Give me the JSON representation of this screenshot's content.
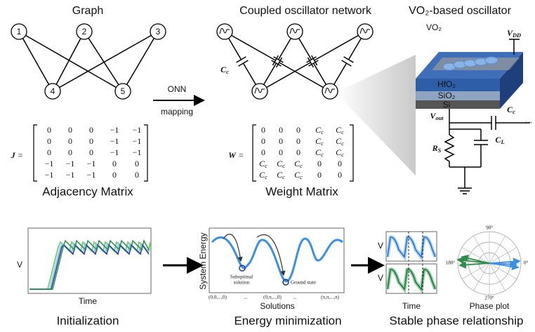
{
  "graph": {
    "title": "Graph",
    "nodes": [
      "1",
      "2",
      "3",
      "4",
      "5"
    ]
  },
  "mapping": {
    "label": "ONN",
    "sublabel": "mapping"
  },
  "adjacency": {
    "symbol": "J",
    "equals": "=",
    "rows": [
      [
        "0",
        "0",
        "0",
        "−1",
        "−1"
      ],
      [
        "0",
        "0",
        "0",
        "−1",
        "−1"
      ],
      [
        "0",
        "0",
        "0",
        "−1",
        "−1"
      ],
      [
        "−1",
        "−1",
        "−1",
        "0",
        "0"
      ],
      [
        "−1",
        "−1",
        "−1",
        "0",
        "0"
      ]
    ],
    "caption": "Adjacency Matrix"
  },
  "network": {
    "title": "Coupled oscillator network",
    "coupling_label": {
      "main": "C",
      "sub": "c"
    }
  },
  "weight": {
    "symbol": "W",
    "equals": "=",
    "rows": [
      [
        "0",
        "0",
        "0",
        {
          "main": "C",
          "sub": "c"
        },
        {
          "main": "C",
          "sub": "c"
        }
      ],
      [
        "0",
        "0",
        "0",
        {
          "main": "C",
          "sub": "c"
        },
        {
          "main": "C",
          "sub": "c"
        }
      ],
      [
        "0",
        "0",
        "0",
        {
          "main": "C",
          "sub": "c"
        },
        {
          "main": "C",
          "sub": "c"
        }
      ],
      [
        {
          "main": "C",
          "sub": "c"
        },
        {
          "main": "C",
          "sub": "c"
        },
        {
          "main": "C",
          "sub": "c"
        },
        "0",
        "0"
      ],
      [
        {
          "main": "C",
          "sub": "c"
        },
        {
          "main": "C",
          "sub": "c"
        },
        {
          "main": "C",
          "sub": "c"
        },
        "0",
        "0"
      ]
    ],
    "caption": "Weight Matrix"
  },
  "device": {
    "title": "VO₂-based oscillator",
    "vo2": "VO₂",
    "vdd": {
      "main": "V",
      "sub": "DD"
    },
    "layers": [
      "HfO₂",
      "SiO₂",
      "Si"
    ],
    "vout": {
      "main": "V",
      "sub": "out"
    },
    "cc": {
      "main": "C",
      "sub": "c"
    },
    "rs": {
      "main": "R",
      "sub": "S"
    },
    "cl": {
      "main": "C",
      "sub": "L"
    },
    "ellipsis": "..."
  },
  "initialization": {
    "y_label": "V",
    "x_label": "Time",
    "caption": "Initialization"
  },
  "energy": {
    "y_label": "System Energy",
    "suboptimal": [
      "Suboptimal",
      "solution"
    ],
    "ground": "Ground state",
    "x_ticks": [
      "(0,0,...,0)",
      "...",
      "(0,π,...,0)",
      "...",
      "(π,π,...,π)"
    ],
    "x_label": "Solutions",
    "caption": "Energy minimization"
  },
  "phase": {
    "y_labels": [
      "V",
      "V"
    ],
    "x_label": "Time",
    "polar_labels": [
      "90°",
      "180°",
      "0°",
      "270°"
    ],
    "polar_caption": "Phase plot",
    "caption": "Stable phase relationship"
  }
}
